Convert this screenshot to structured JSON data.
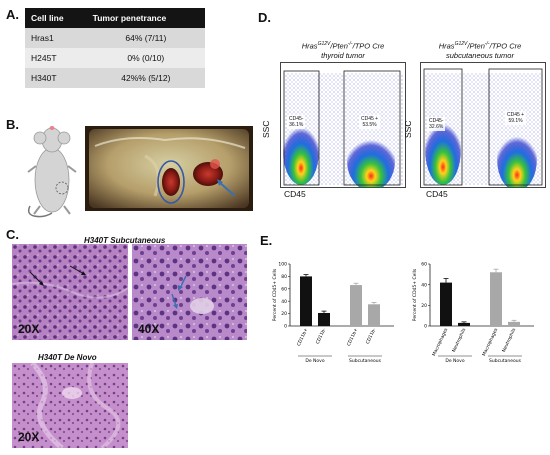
{
  "panels": {
    "a": "A.",
    "b": "B.",
    "c": "C.",
    "d": "D.",
    "e": "E."
  },
  "table": {
    "headers": [
      "Cell line",
      "Tumor penetrance"
    ],
    "rows": [
      [
        "Hras1",
        "64% (7/11)"
      ],
      [
        "H245T",
        "0% (0/10)"
      ],
      [
        "H340T",
        "42%% (5/12)"
      ]
    ]
  },
  "flow": {
    "left": {
      "title_gene": "Hras",
      "title_sup": "G12V",
      "title_rest": "/Pten",
      "title_sup2": "-/-",
      "title_end": "/TPO Cre",
      "subtitle": "thyroid tumor",
      "gate_neg": "CD45-\n36.1%",
      "gate_pos": "CD45 +\n53.5%"
    },
    "right": {
      "title_gene": "Hras",
      "title_sup": "G12V",
      "title_rest": "/Pten",
      "title_sup2": "-/-",
      "title_end": "/TPO Cre",
      "subtitle": "subcutaneous tumor",
      "gate_neg": "CD45-\n32.6%",
      "gate_pos": "CD45 +\n59.1%"
    },
    "y_label": "SSC",
    "x_label": "CD45"
  },
  "histology": {
    "top_title": "H340T Subcutaneous",
    "bottom_title": "H340T De Novo",
    "mag_left": "20X",
    "mag_right": "40X",
    "mag_bottom": "20X"
  },
  "colors": {
    "black_bar": "#111111",
    "gray_bar": "#a8a8a8",
    "arrow_blue": "#3a6fb0"
  },
  "chart_data": [
    {
      "type": "bar",
      "ylabel": "Percent of CD45+ Cells",
      "ylim": [
        0,
        100
      ],
      "yticks": [
        0,
        20,
        40,
        60,
        80,
        100
      ],
      "categories": [
        "CD11b+",
        "CD11b-",
        "CD11b+",
        "CD11b-"
      ],
      "groups": [
        "De Novo",
        "Subcutaneous"
      ],
      "values": [
        80,
        21,
        66,
        35
      ],
      "errors": [
        3,
        3,
        3,
        3
      ],
      "colors": [
        "#111111",
        "#111111",
        "#a8a8a8",
        "#a8a8a8"
      ]
    },
    {
      "type": "bar",
      "ylabel": "Percent of CD45+ Cells",
      "ylim": [
        0,
        60
      ],
      "yticks": [
        0,
        20,
        40,
        60
      ],
      "categories": [
        "Macrophages",
        "Neutrophils",
        "Macrophages",
        "Neutrophils"
      ],
      "groups": [
        "De Novo",
        "Subcutaneous"
      ],
      "values": [
        42,
        3,
        52,
        4
      ],
      "errors": [
        4,
        1,
        3,
        1.5
      ],
      "colors": [
        "#111111",
        "#111111",
        "#a8a8a8",
        "#a8a8a8"
      ]
    }
  ]
}
